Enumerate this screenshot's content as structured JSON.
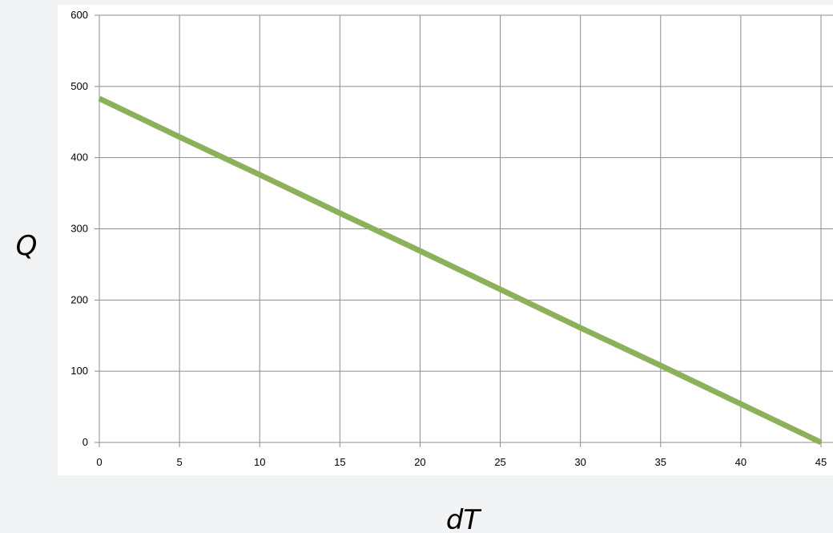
{
  "chart_data": {
    "type": "line",
    "title": "",
    "xlabel": "dT",
    "ylabel": "Q",
    "xlim": [
      0,
      45
    ],
    "ylim": [
      0,
      600
    ],
    "x_ticks": [
      0,
      5,
      10,
      15,
      20,
      25,
      30,
      35,
      40,
      45
    ],
    "y_ticks": [
      0,
      100,
      200,
      300,
      400,
      500,
      600
    ],
    "grid": true,
    "legend": "none",
    "series": [
      {
        "x": [
          0,
          5,
          10,
          15,
          20,
          25,
          30,
          35,
          40,
          45
        ],
        "y": [
          483,
          429,
          376,
          322,
          269,
          215,
          161,
          108,
          54,
          0
        ],
        "color": "#8db05a"
      }
    ]
  },
  "colors": {
    "plot_background": "#ffffff",
    "page_background": "#f2f3f5",
    "grid": "#8c8c8c",
    "line": "#8db05a"
  }
}
